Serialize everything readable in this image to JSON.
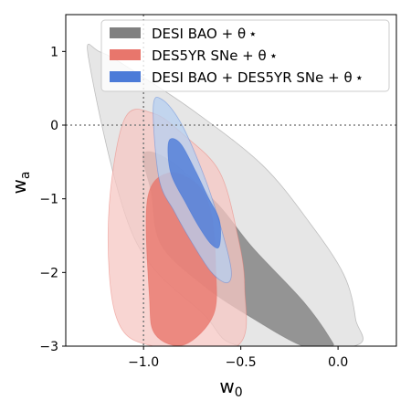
{
  "chart_data": {
    "type": "contour",
    "xlabel": "w",
    "xlabel_sub": "0",
    "ylabel": "w",
    "ylabel_sub": "a",
    "xlim": [
      -1.4,
      0.3
    ],
    "ylim": [
      -3.0,
      1.5
    ],
    "xticks": [
      -1.0,
      -0.5,
      0.0
    ],
    "xtick_labels": [
      "−1.0",
      "−0.5",
      "0.0"
    ],
    "yticks": [
      1,
      0,
      -1,
      -2,
      -3
    ],
    "ytick_labels": [
      "1",
      "0",
      "−1",
      "−2",
      "−3"
    ],
    "reference_lines": {
      "x": -1.0,
      "y": 0.0
    },
    "legend_position": "top-right",
    "series": [
      {
        "name": "DESI BAO + θ ⋆",
        "color": "#808080",
        "outer_color": "#dddddd",
        "contours": {
          "outer": [
            [
              -1.05,
              -1.52
            ],
            [
              -1.28,
              0.86
            ],
            [
              -1.22,
              0.99
            ],
            [
              -0.99,
              0.63
            ],
            [
              -0.73,
              0.17
            ],
            [
              -0.39,
              -0.54
            ],
            [
              -0.15,
              -1.31
            ],
            [
              0.03,
              -2.03
            ],
            [
              0.09,
              -2.63
            ],
            [
              0.08,
              -3.0
            ],
            [
              -0.5,
              -3.0
            ],
            [
              -0.69,
              -2.57
            ]
          ],
          "inner": [
            [
              -0.96,
              -0.91
            ],
            [
              -1.0,
              -0.39
            ],
            [
              -0.86,
              -0.49
            ],
            [
              -0.62,
              -1.07
            ],
            [
              -0.44,
              -1.66
            ],
            [
              -0.18,
              -2.39
            ],
            [
              -0.04,
              -2.9
            ],
            [
              -0.04,
              -3.0
            ],
            [
              -0.18,
              -3.0
            ],
            [
              -0.44,
              -2.62
            ],
            [
              -0.69,
              -2.18
            ],
            [
              -0.91,
              -1.62
            ]
          ]
        }
      },
      {
        "name": "DES5YR SNe + θ ⋆",
        "color": "#e8766c",
        "outer_color": "#f6c7c3",
        "contours": {
          "outer": [
            [
              -1.14,
              -2.61
            ],
            [
              -1.18,
              -1.26
            ],
            [
              -1.1,
              0.07
            ],
            [
              -0.95,
              0.16
            ],
            [
              -0.79,
              -0.14
            ],
            [
              -0.61,
              -0.63
            ],
            [
              -0.52,
              -1.45
            ],
            [
              -0.48,
              -2.19
            ],
            [
              -0.52,
              -3.0
            ],
            [
              -0.95,
              -3.0
            ]
          ],
          "inner": [
            [
              -0.97,
              -2.32
            ],
            [
              -0.98,
              -1.01
            ],
            [
              -0.87,
              -0.65
            ],
            [
              -0.72,
              -0.82
            ],
            [
              -0.65,
              -1.23
            ],
            [
              -0.63,
              -1.91
            ],
            [
              -0.64,
              -2.57
            ],
            [
              -0.79,
              -2.98
            ],
            [
              -0.94,
              -2.84
            ]
          ]
        }
      },
      {
        "name": "DESI BAO + DES5YR SNe + θ ⋆",
        "color": "#4c7bd8",
        "outer_color": "#b5cff0",
        "contours": {
          "outer": [
            [
              -0.92,
              -0.73
            ],
            [
              -0.95,
              0.25
            ],
            [
              -0.9,
              0.34
            ],
            [
              -0.8,
              -0.01
            ],
            [
              -0.68,
              -0.75
            ],
            [
              -0.6,
              -1.41
            ],
            [
              -0.55,
              -1.95
            ],
            [
              -0.57,
              -2.14
            ],
            [
              -0.65,
              -2.0
            ],
            [
              -0.75,
              -1.6
            ],
            [
              -0.84,
              -1.18
            ]
          ],
          "inner": [
            [
              -0.86,
              -0.65
            ],
            [
              -0.87,
              -0.22
            ],
            [
              -0.81,
              -0.25
            ],
            [
              -0.73,
              -0.64
            ],
            [
              -0.67,
              -0.97
            ],
            [
              -0.61,
              -1.29
            ],
            [
              -0.61,
              -1.64
            ],
            [
              -0.65,
              -1.62
            ],
            [
              -0.71,
              -1.4
            ],
            [
              -0.78,
              -1.07
            ]
          ]
        }
      }
    ]
  }
}
